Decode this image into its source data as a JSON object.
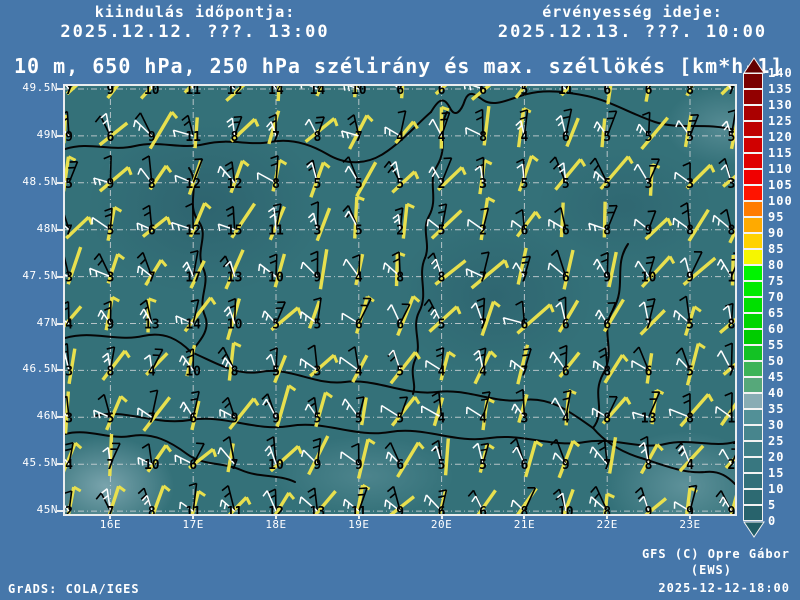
{
  "header": {
    "init_label": "kiindulás időpontja:",
    "init_time": "2025.12.12. ???. 13:00",
    "valid_label": "érvényesség ideje:",
    "valid_time": "2025.12.13. ???. 10:00"
  },
  "title": "10 m, 650 hPa, 250 hPa szélirány és max. széllökés [km*h-1]",
  "footer": {
    "grads_credit": "GrADS: COLA/IGES",
    "model_credit_line1": "GFS (C) Opre Gábor",
    "model_credit_line2": "(EWS)",
    "run_stamp": "2025-12-12-18:00"
  },
  "map": {
    "lat_labels": [
      "49.5N",
      "49N",
      "48.5N",
      "48N",
      "47.5N",
      "47N",
      "46.5N",
      "46N",
      "45.5N",
      "45N"
    ],
    "lon_labels": [
      "16E",
      "17E",
      "18E",
      "19E",
      "20E",
      "21E",
      "22E",
      "23E"
    ]
  },
  "colors": {
    "page_background": "#4677aa",
    "map_base": "#347179",
    "barb_yellow": "#e8e04e",
    "barb_white": "#ffffff",
    "barb_black": "#000000",
    "gridline": "#cdd3d6",
    "border_line": "#050505",
    "text": "#ffffff"
  },
  "colorbar": {
    "unit": "km*h-1",
    "levels": [
      0,
      5,
      10,
      15,
      20,
      25,
      30,
      35,
      40,
      45,
      50,
      55,
      60,
      65,
      70,
      75,
      80,
      85,
      90,
      95,
      100,
      105,
      110,
      115,
      120,
      125,
      130,
      135,
      140
    ],
    "segment_colors_bottom_to_top": [
      "#28636c",
      "#2d6a72",
      "#32707a",
      "#387780",
      "#3f7e87",
      "#47858d",
      "#529097",
      "#88acb4",
      "#56a87a",
      "#3cb357",
      "#13c224",
      "#00cc00",
      "#00d600",
      "#00e000",
      "#00ea00",
      "#00f400",
      "#f6f600",
      "#ffd200",
      "#ffaa00",
      "#ff7c00",
      "#ff1400",
      "#f00000",
      "#e00000",
      "#d00000",
      "#be0000",
      "#aa0000",
      "#920000",
      "#7a0000"
    ],
    "arrow_top_color": "#640000",
    "arrow_bottom_color": "#215c66"
  },
  "chart_data": {
    "type": "heatmap",
    "title": "10 m, 650 hPa, 250 hPa szélirány és max. széllökés [km*h-1]",
    "legend_position": "right",
    "grid": true,
    "lats": [
      49.5,
      49.0,
      48.5,
      48.0,
      47.5,
      47.0,
      46.5,
      46.0,
      45.5,
      45.0
    ],
    "lons": [
      15.5,
      16.0,
      16.5,
      17.0,
      17.5,
      18.0,
      18.5,
      19.0,
      19.5,
      20.0,
      20.5,
      21.0,
      21.5,
      22.0,
      22.5,
      23.0,
      23.5
    ],
    "gust_values_by_lat_row": [
      [
        7,
        9,
        10,
        11,
        12,
        14,
        14,
        10,
        6,
        6,
        6,
        5,
        11,
        6,
        6,
        8,
        7
      ],
      [
        9,
        6,
        9,
        11,
        8,
        7,
        8,
        7,
        4,
        4,
        8,
        4,
        6,
        5,
        5,
        5,
        5
      ],
      [
        5,
        9,
        8,
        12,
        12,
        8,
        5,
        5,
        5,
        2,
        3,
        5,
        5,
        5,
        3,
        3,
        3
      ],
      [
        7,
        5,
        6,
        12,
        15,
        11,
        3,
        5,
        2,
        5,
        2,
        6,
        6,
        8,
        9,
        8,
        8
      ],
      [
        3,
        3,
        7,
        17,
        13,
        10,
        9,
        4,
        8,
        8,
        7,
        7,
        6,
        9,
        10,
        9,
        1
      ],
      [
        4,
        9,
        13,
        14,
        10,
        5,
        5,
        6,
        6,
        5,
        7,
        6,
        6,
        6,
        7,
        5,
        8
      ],
      [
        3,
        8,
        4,
        10,
        8,
        5,
        3,
        4,
        5,
        4,
        4,
        7,
        6,
        8,
        6,
        5,
        7
      ],
      [
        3,
        5,
        7,
        6,
        9,
        9,
        5,
        5,
        5,
        4,
        4,
        3,
        4,
        8,
        13,
        8,
        1
      ],
      [
        4,
        7,
        10,
        6,
        7,
        10,
        9,
        9,
        6,
        5,
        5,
        6,
        9,
        7,
        8,
        4,
        2
      ],
      [
        2,
        7,
        8,
        11,
        11,
        12,
        13,
        11,
        9,
        6,
        6,
        8,
        10,
        8,
        9,
        9,
        9
      ]
    ]
  }
}
